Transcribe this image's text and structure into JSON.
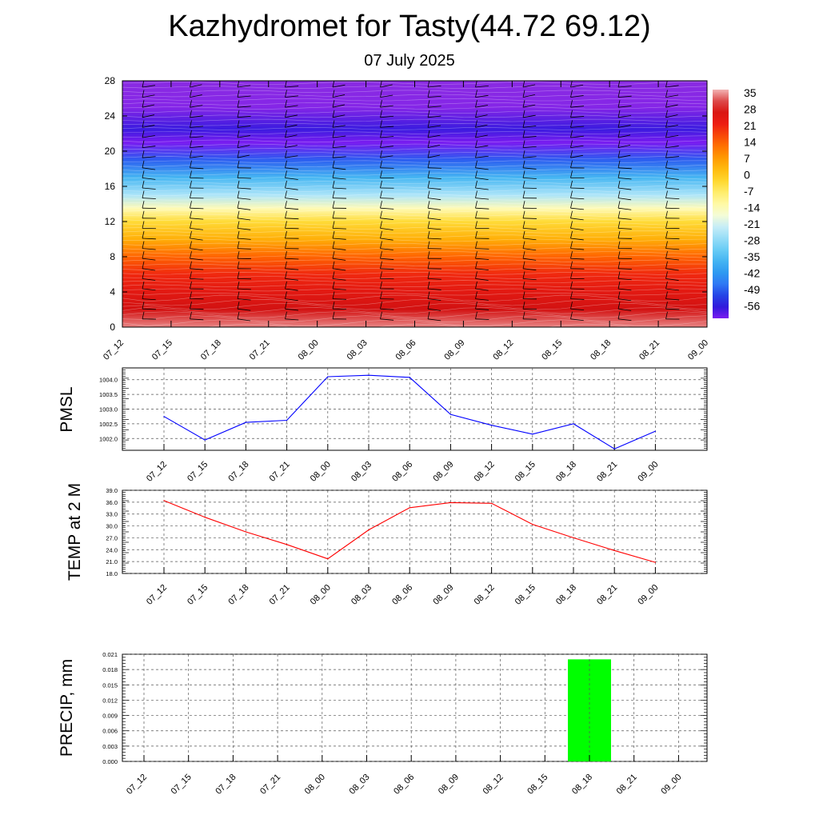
{
  "title": "Kazhydromet for Tasty(44.72 69.12)",
  "subtitle": "07 July 2025",
  "time_labels": [
    "07_12",
    "07_15",
    "07_18",
    "07_21",
    "08_00",
    "08_03",
    "08_06",
    "08_09",
    "08_12",
    "08_15",
    "08_18",
    "08_21",
    "09_00"
  ],
  "chart_data": [
    {
      "type": "heatmap",
      "title": "",
      "xlabel": "",
      "ylabel": "",
      "x": [
        "07_12",
        "07_15",
        "07_18",
        "07_21",
        "08_00",
        "08_03",
        "08_06",
        "08_09",
        "08_12",
        "08_15",
        "08_18",
        "08_21",
        "09_00"
      ],
      "yticks": [
        "0",
        "4",
        "8",
        "12",
        "16",
        "20",
        "24",
        "28"
      ],
      "ylim": [
        0,
        28
      ],
      "colorbar_labels": [
        "35",
        "28",
        "21",
        "14",
        "7",
        "0",
        "-7",
        "-14",
        "-21",
        "-28",
        "-35",
        "-42",
        "-49",
        "-56"
      ],
      "colorbar_range": [
        -56,
        35
      ],
      "profile": [
        {
          "y": 0,
          "value": 33
        },
        {
          "y": 2,
          "value": 28
        },
        {
          "y": 4,
          "value": 24
        },
        {
          "y": 6,
          "value": 20
        },
        {
          "y": 8,
          "value": 14
        },
        {
          "y": 10,
          "value": 5
        },
        {
          "y": 12,
          "value": -2
        },
        {
          "y": 13.5,
          "value": -12
        },
        {
          "y": 15,
          "value": -22
        },
        {
          "y": 17,
          "value": -33
        },
        {
          "y": 19,
          "value": -45
        },
        {
          "y": 21,
          "value": -56
        },
        {
          "y": 22.5,
          "value": -52
        },
        {
          "y": 25,
          "value": -60
        },
        {
          "y": 28,
          "value": -62
        }
      ],
      "overlay": "wind barbs"
    },
    {
      "type": "line",
      "ylabel": "PMSL",
      "x": [
        "07_12",
        "07_15",
        "07_18",
        "07_21",
        "08_00",
        "08_03",
        "08_06",
        "08_09",
        "08_12",
        "08_15",
        "08_18",
        "08_21",
        "09_00"
      ],
      "series": [
        {
          "values": [
            1002.75,
            1001.95,
            1002.55,
            1002.62,
            1004.1,
            1004.15,
            1004.08,
            1002.82,
            1002.45,
            1002.15,
            1002.5,
            1001.65,
            1002.25
          ]
        }
      ],
      "ylim": [
        1001.6,
        1004.4
      ],
      "yticks": [
        "1002.0",
        "1002.5",
        "1003.0",
        "1003.5",
        "1004.0"
      ],
      "ytick_values": [
        1002.0,
        1002.5,
        1003.0,
        1003.5,
        1004.0
      ],
      "color": "#0000ff",
      "grid": true
    },
    {
      "type": "line",
      "ylabel": "TEMP at 2 M",
      "x": [
        "07_12",
        "07_15",
        "07_18",
        "07_21",
        "08_00",
        "08_03",
        "08_06",
        "08_09",
        "08_12",
        "08_15",
        "08_18",
        "08_21",
        "09_00"
      ],
      "series": [
        {
          "values": [
            36.4,
            32.2,
            28.5,
            25.3,
            21.7,
            29.0,
            34.6,
            35.9,
            35.7,
            30.4,
            27.0,
            23.8,
            20.8
          ]
        }
      ],
      "ylim": [
        18.0,
        39.0
      ],
      "yticks": [
        "18.0",
        "21.0",
        "24.0",
        "27.0",
        "30.0",
        "33.0",
        "36.0",
        "39.0"
      ],
      "ytick_values": [
        18,
        21,
        24,
        27,
        30,
        33,
        36,
        39
      ],
      "color": "#ff0000",
      "grid": true
    },
    {
      "type": "bar",
      "ylabel": "PRECIP, mm",
      "categories": [
        "07_12",
        "07_15",
        "07_18",
        "07_21",
        "08_00",
        "08_03",
        "08_06",
        "08_09",
        "08_12",
        "08_15",
        "08_18",
        "08_21",
        "09_00"
      ],
      "values": [
        0,
        0,
        0,
        0,
        0,
        0,
        0,
        0,
        0,
        0,
        0.02,
        0,
        0
      ],
      "ylim": [
        0,
        0.021
      ],
      "yticks": [
        "0.000",
        "0.003",
        "0.006",
        "0.009",
        "0.012",
        "0.015",
        "0.018",
        "0.021"
      ],
      "ytick_values": [
        0,
        0.003,
        0.006,
        0.009,
        0.012,
        0.015,
        0.018,
        0.021
      ],
      "color": "#00ff00",
      "grid": true
    }
  ]
}
